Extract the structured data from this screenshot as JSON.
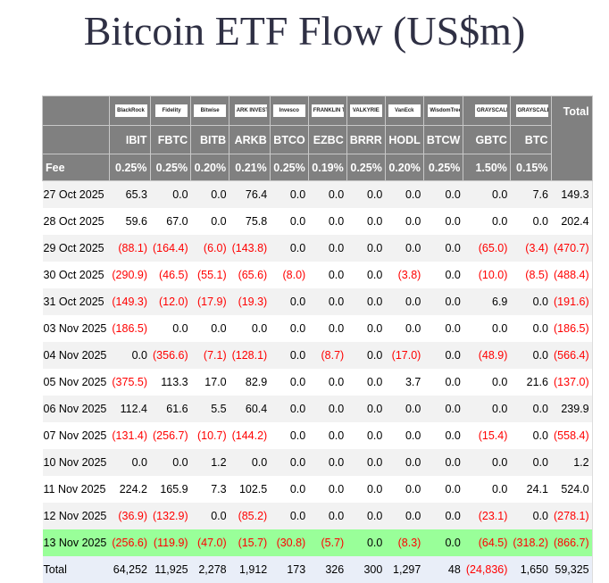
{
  "title": "Bitcoin ETF Flow (US$m)",
  "logos": [
    "BlackRock",
    "Fidelity",
    "Bitwise",
    "ARK INVEST",
    "Invesco",
    "FRANKLIN TEMPLETON",
    "VALKYRIE",
    "VanEck",
    "WisdomTree",
    "GRAYSCALE",
    "GRAYSCALE"
  ],
  "total_label": "Total",
  "tickers": [
    "IBIT",
    "FBTC",
    "BITB",
    "ARKB",
    "BTCO",
    "EZBC",
    "BRRR",
    "HODL",
    "BTCW",
    "GBTC",
    "BTC"
  ],
  "fee_label": "Fee",
  "fees": [
    "0.25%",
    "0.25%",
    "0.20%",
    "0.21%",
    "0.25%",
    "0.19%",
    "0.25%",
    "0.20%",
    "0.25%",
    "1.50%",
    "0.15%"
  ],
  "colors": {
    "negative": "#ff0000",
    "highlight": "#99ff99",
    "header": "#808080"
  },
  "rows": [
    {
      "date": "27 Oct 2025",
      "values": [
        "65.3",
        "0.0",
        "0.0",
        "76.4",
        "0.0",
        "0.0",
        "0.0",
        "0.0",
        "0.0",
        "0.0",
        "7.6",
        "149.3"
      ]
    },
    {
      "date": "28 Oct 2025",
      "values": [
        "59.6",
        "67.0",
        "0.0",
        "75.8",
        "0.0",
        "0.0",
        "0.0",
        "0.0",
        "0.0",
        "0.0",
        "0.0",
        "202.4"
      ]
    },
    {
      "date": "29 Oct 2025",
      "values": [
        "(88.1)",
        "(164.4)",
        "(6.0)",
        "(143.8)",
        "0.0",
        "0.0",
        "0.0",
        "0.0",
        "0.0",
        "(65.0)",
        "(3.4)",
        "(470.7)"
      ]
    },
    {
      "date": "30 Oct 2025",
      "values": [
        "(290.9)",
        "(46.5)",
        "(55.1)",
        "(65.6)",
        "(8.0)",
        "0.0",
        "0.0",
        "(3.8)",
        "0.0",
        "(10.0)",
        "(8.5)",
        "(488.4)"
      ]
    },
    {
      "date": "31 Oct 2025",
      "values": [
        "(149.3)",
        "(12.0)",
        "(17.9)",
        "(19.3)",
        "0.0",
        "0.0",
        "0.0",
        "0.0",
        "0.0",
        "6.9",
        "0.0",
        "(191.6)"
      ]
    },
    {
      "date": "03 Nov 2025",
      "values": [
        "(186.5)",
        "0.0",
        "0.0",
        "0.0",
        "0.0",
        "0.0",
        "0.0",
        "0.0",
        "0.0",
        "0.0",
        "0.0",
        "(186.5)"
      ]
    },
    {
      "date": "04 Nov 2025",
      "values": [
        "0.0",
        "(356.6)",
        "(7.1)",
        "(128.1)",
        "0.0",
        "(8.7)",
        "0.0",
        "(17.0)",
        "0.0",
        "(48.9)",
        "0.0",
        "(566.4)"
      ]
    },
    {
      "date": "05 Nov 2025",
      "values": [
        "(375.5)",
        "113.3",
        "17.0",
        "82.9",
        "0.0",
        "0.0",
        "0.0",
        "3.7",
        "0.0",
        "0.0",
        "21.6",
        "(137.0)"
      ]
    },
    {
      "date": "06 Nov 2025",
      "values": [
        "112.4",
        "61.6",
        "5.5",
        "60.4",
        "0.0",
        "0.0",
        "0.0",
        "0.0",
        "0.0",
        "0.0",
        "0.0",
        "239.9"
      ]
    },
    {
      "date": "07 Nov 2025",
      "values": [
        "(131.4)",
        "(256.7)",
        "(10.7)",
        "(144.2)",
        "0.0",
        "0.0",
        "0.0",
        "0.0",
        "0.0",
        "(15.4)",
        "0.0",
        "(558.4)"
      ]
    },
    {
      "date": "10 Nov 2025",
      "values": [
        "0.0",
        "0.0",
        "1.2",
        "0.0",
        "0.0",
        "0.0",
        "0.0",
        "0.0",
        "0.0",
        "0.0",
        "0.0",
        "1.2"
      ]
    },
    {
      "date": "11 Nov 2025",
      "values": [
        "224.2",
        "165.9",
        "7.3",
        "102.5",
        "0.0",
        "0.0",
        "0.0",
        "0.0",
        "0.0",
        "0.0",
        "24.1",
        "524.0"
      ]
    },
    {
      "date": "12 Nov 2025",
      "values": [
        "(36.9)",
        "(132.9)",
        "0.0",
        "(85.2)",
        "0.0",
        "0.0",
        "0.0",
        "0.0",
        "0.0",
        "(23.1)",
        "0.0",
        "(278.1)"
      ]
    },
    {
      "date": "13 Nov 2025",
      "highlight": true,
      "values": [
        "(256.6)",
        "(119.9)",
        "(47.0)",
        "(15.7)",
        "(30.8)",
        "(5.7)",
        "0.0",
        "(8.3)",
        "0.0",
        "(64.5)",
        "(318.2)",
        "(866.7)"
      ]
    }
  ],
  "totals": {
    "label": "Total",
    "values": [
      "64,252",
      "11,925",
      "2,278",
      "1,912",
      "173",
      "326",
      "300",
      "1,297",
      "48",
      "(24,836)",
      "1,650",
      "59,325"
    ]
  }
}
